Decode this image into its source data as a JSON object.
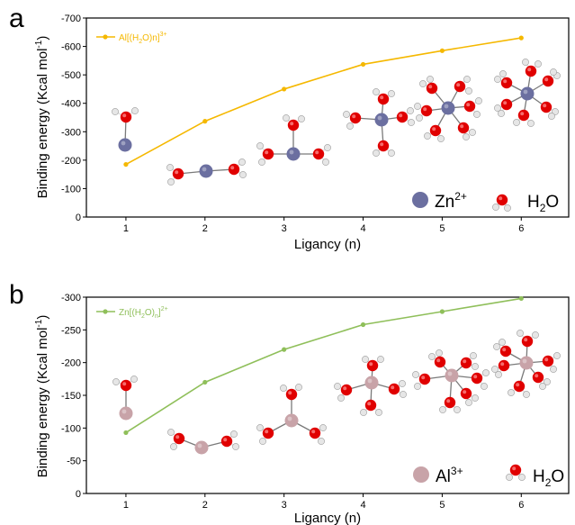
{
  "panels": [
    {
      "letter": "a",
      "ion_key": "Zn",
      "ion_key_charge": "2+",
      "water_key": "H",
      "water_key_sub": "2",
      "water_key_tail": "O",
      "legend": {
        "t1": "Al[(H",
        "t2": "2",
        "t3": "O)n]",
        "t4": "3+"
      }
    },
    {
      "letter": "b",
      "ion_key": "Al",
      "ion_key_charge": "3+",
      "water_key": "H",
      "water_key_sub": "2",
      "water_key_tail": "O",
      "legend": {
        "t1": "Zn[(H",
        "t2": "2",
        "t3": "O)",
        "t4": "n",
        "t5": "]",
        "t6": "2+"
      }
    }
  ],
  "chart_data": [
    {
      "type": "line",
      "xlabel": "Ligancy (n)",
      "ylabel": "Binding energy (Kcal mol",
      "ylabel_sup": "-1",
      "ylabel_tail": ")",
      "x": [
        1,
        2,
        3,
        4,
        5,
        6
      ],
      "xlim": [
        0.5,
        6.6
      ],
      "ylim": [
        0,
        -700
      ],
      "yticks": [
        0,
        -100,
        -200,
        -300,
        -400,
        -500,
        -600,
        -700
      ],
      "ytick_labels": [
        "0",
        "-100",
        "-200",
        "-300",
        "-400",
        "-500",
        "-600",
        "-700"
      ],
      "xtick_labels": [
        "1",
        "2",
        "3",
        "4",
        "5",
        "6"
      ],
      "series": [
        {
          "name": "Al[(H2O)n]3+",
          "color": "#f5b800",
          "values": [
            -185,
            -337,
            -450,
            -537,
            -585,
            -630
          ]
        }
      ]
    },
    {
      "type": "line",
      "xlabel": "Ligancy (n)",
      "ylabel": "Binding energy (Kcal mol",
      "ylabel_sup": "-1",
      "ylabel_tail": ")",
      "x": [
        1,
        2,
        3,
        4,
        5,
        6
      ],
      "xlim": [
        0.5,
        6.6
      ],
      "ylim": [
        0,
        -300
      ],
      "yticks": [
        0,
        -50,
        -100,
        -150,
        -200,
        -250,
        -300
      ],
      "ytick_labels": [
        "0",
        "-50",
        "-100",
        "-150",
        "-200",
        "-250",
        "-300"
      ],
      "xtick_labels": [
        "1",
        "2",
        "3",
        "4",
        "5",
        "6"
      ],
      "series": [
        {
          "name": "Zn[(H2O)n]2+",
          "color": "#8fbf5a",
          "values": [
            -93,
            -170,
            -220,
            -258,
            -278,
            -298
          ]
        }
      ]
    }
  ],
  "colors": {
    "zn_atom": "#6b6fa0",
    "al_atom": "#c8a3a8",
    "oxygen": "#e00000",
    "hydrogen": "#e6e6e6",
    "bond": "#7a7a7a"
  }
}
